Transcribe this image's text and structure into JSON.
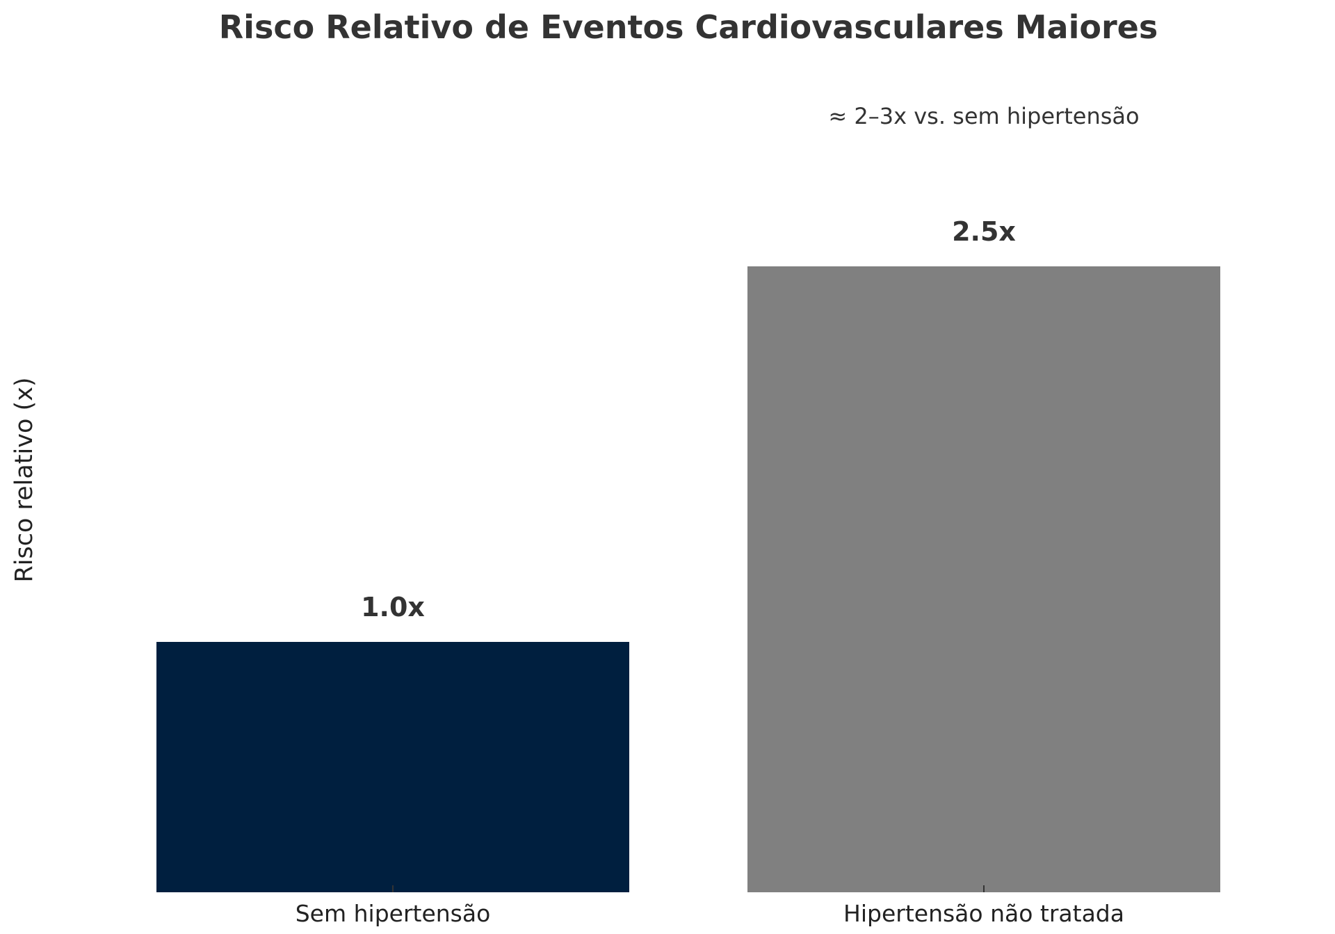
{
  "chart_data": {
    "type": "bar",
    "title": "Risco Relativo de Eventos Cardiovasculares Maiores",
    "xlabel": "",
    "ylabel": "Risco relativo (x)",
    "categories": [
      "Sem hipertensão",
      "Hipertensão não tratada"
    ],
    "values": [
      1.0,
      2.5
    ],
    "value_labels": [
      "1.0x",
      "2.5x"
    ],
    "colors": [
      "#001f3f",
      "#808080"
    ],
    "ylim": [
      0,
      3.3
    ],
    "grid": false,
    "annotation": {
      "text": "≈ 2–3x vs. sem hipertensão",
      "category_index": 1,
      "y": 3.1
    }
  }
}
